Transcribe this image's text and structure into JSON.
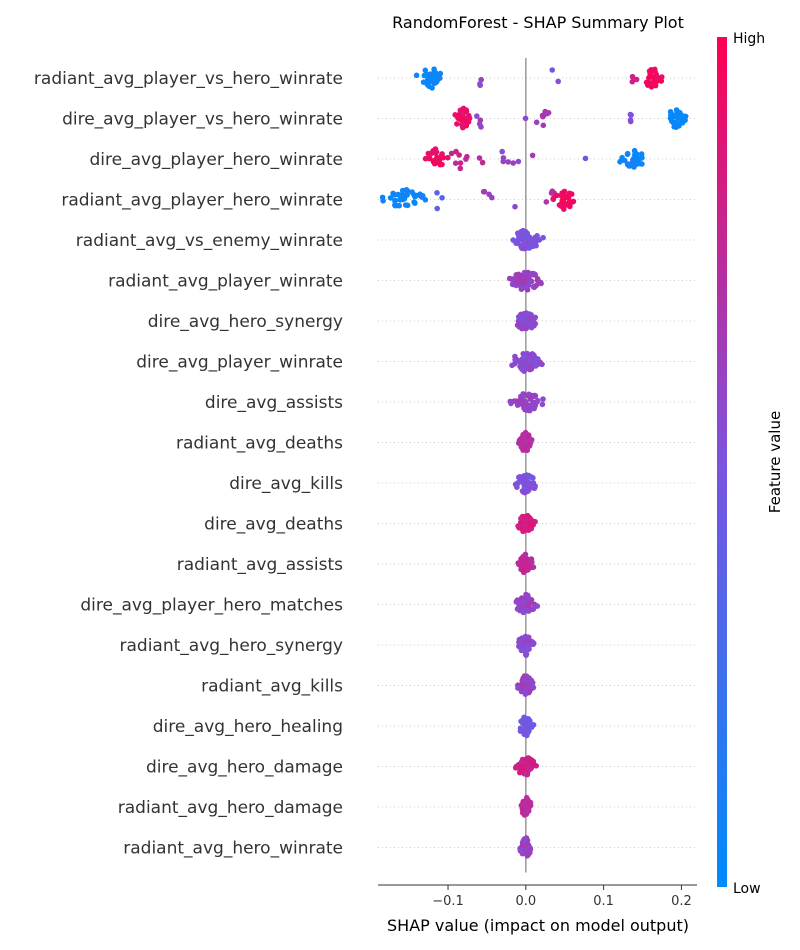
{
  "chart_data": {
    "type": "scatter",
    "title": "RandomForest - SHAP Summary Plot",
    "xlabel": "SHAP value (impact on model output)",
    "xlim": [
      -0.19,
      0.22
    ],
    "xticks": [
      -0.1,
      0.0,
      0.1,
      0.2
    ],
    "xtick_labels": [
      "−0.1",
      "0.0",
      "0.1",
      "0.2"
    ],
    "zero_line": 0.0,
    "colorbar": {
      "label": "Feature value",
      "high_label": "High",
      "low_label": "Low",
      "low_color": "#008bfb",
      "high_color": "#ff0052"
    },
    "features": [
      {
        "name": "radiant_avg_player_vs_hero_winrate",
        "clusters": [
          {
            "center": -0.122,
            "spread": 0.01,
            "count": 34,
            "value": 0.05
          },
          {
            "center": -0.057,
            "spread": 0.006,
            "count": 3,
            "value": 0.55
          },
          {
            "center": 0.038,
            "spread": 0.008,
            "count": 2,
            "value": 0.5
          },
          {
            "center": 0.138,
            "spread": 0.004,
            "count": 3,
            "value": 0.8
          },
          {
            "center": 0.163,
            "spread": 0.007,
            "count": 30,
            "value": 0.97
          }
        ]
      },
      {
        "name": "dire_avg_player_vs_hero_winrate",
        "clusters": [
          {
            "center": -0.08,
            "spread": 0.007,
            "count": 28,
            "value": 0.93
          },
          {
            "center": -0.058,
            "spread": 0.006,
            "count": 4,
            "value": 0.6
          },
          {
            "center": 0.0,
            "spread": 0.002,
            "count": 1,
            "value": 0.55
          },
          {
            "center": 0.022,
            "spread": 0.006,
            "count": 8,
            "value": 0.65
          },
          {
            "center": 0.138,
            "spread": 0.006,
            "count": 4,
            "value": 0.5
          },
          {
            "center": 0.192,
            "spread": 0.007,
            "count": 34,
            "value": 0.04
          }
        ]
      },
      {
        "name": "dire_avg_player_hero_winrate",
        "clusters": [
          {
            "center": -0.115,
            "spread": 0.008,
            "count": 26,
            "value": 0.95
          },
          {
            "center": -0.08,
            "spread": 0.015,
            "count": 10,
            "value": 0.75
          },
          {
            "center": -0.025,
            "spread": 0.02,
            "count": 7,
            "value": 0.6
          },
          {
            "center": 0.077,
            "spread": 0.002,
            "count": 1,
            "value": 0.55
          },
          {
            "center": 0.138,
            "spread": 0.01,
            "count": 30,
            "value": 0.05
          }
        ]
      },
      {
        "name": "radiant_avg_player_hero_winrate",
        "clusters": [
          {
            "center": -0.155,
            "spread": 0.014,
            "count": 36,
            "value": 0.05
          },
          {
            "center": -0.115,
            "spread": 0.005,
            "count": 3,
            "value": 0.35
          },
          {
            "center": -0.052,
            "spread": 0.008,
            "count": 5,
            "value": 0.65
          },
          {
            "center": -0.012,
            "spread": 0.003,
            "count": 1,
            "value": 0.6
          },
          {
            "center": 0.032,
            "spread": 0.005,
            "count": 6,
            "value": 0.7
          },
          {
            "center": 0.05,
            "spread": 0.007,
            "count": 28,
            "value": 0.95
          }
        ]
      },
      {
        "name": "radiant_avg_vs_enemy_winrate",
        "clusters": [
          {
            "center": 0.0,
            "spread": 0.011,
            "count": 60,
            "value": 0.5
          }
        ]
      },
      {
        "name": "radiant_avg_player_winrate",
        "clusters": [
          {
            "center": 0.0,
            "spread": 0.012,
            "count": 60,
            "value": 0.6
          }
        ]
      },
      {
        "name": "dire_avg_hero_synergy",
        "clusters": [
          {
            "center": 0.0,
            "spread": 0.008,
            "count": 55,
            "value": 0.55
          }
        ]
      },
      {
        "name": "dire_avg_player_winrate",
        "clusters": [
          {
            "center": 0.0,
            "spread": 0.012,
            "count": 60,
            "value": 0.55
          }
        ]
      },
      {
        "name": "dire_avg_assists",
        "clusters": [
          {
            "center": 0.0,
            "spread": 0.011,
            "count": 60,
            "value": 0.6
          }
        ]
      },
      {
        "name": "radiant_avg_deaths",
        "clusters": [
          {
            "center": 0.0,
            "spread": 0.006,
            "count": 50,
            "value": 0.7
          }
        ]
      },
      {
        "name": "dire_avg_kills",
        "clusters": [
          {
            "center": 0.0,
            "spread": 0.008,
            "count": 52,
            "value": 0.5
          }
        ]
      },
      {
        "name": "dire_avg_deaths",
        "clusters": [
          {
            "center": 0.0,
            "spread": 0.006,
            "count": 50,
            "value": 0.85
          }
        ]
      },
      {
        "name": "radiant_avg_assists",
        "clusters": [
          {
            "center": 0.0,
            "spread": 0.005,
            "count": 46,
            "value": 0.75
          }
        ]
      },
      {
        "name": "dire_avg_player_hero_matches",
        "clusters": [
          {
            "center": 0.0,
            "spread": 0.007,
            "count": 50,
            "value": 0.6
          }
        ]
      },
      {
        "name": "radiant_avg_hero_synergy",
        "clusters": [
          {
            "center": 0.0,
            "spread": 0.006,
            "count": 48,
            "value": 0.55
          }
        ]
      },
      {
        "name": "radiant_avg_kills",
        "clusters": [
          {
            "center": 0.0,
            "spread": 0.006,
            "count": 48,
            "value": 0.6
          }
        ]
      },
      {
        "name": "dire_avg_hero_healing",
        "clusters": [
          {
            "center": 0.0,
            "spread": 0.005,
            "count": 44,
            "value": 0.45
          }
        ]
      },
      {
        "name": "dire_avg_hero_damage",
        "clusters": [
          {
            "center": 0.0,
            "spread": 0.007,
            "count": 50,
            "value": 0.8
          }
        ]
      },
      {
        "name": "radiant_avg_hero_damage",
        "clusters": [
          {
            "center": 0.0,
            "spread": 0.004,
            "count": 42,
            "value": 0.75
          }
        ]
      },
      {
        "name": "radiant_avg_hero_winrate",
        "clusters": [
          {
            "center": 0.0,
            "spread": 0.004,
            "count": 42,
            "value": 0.6
          }
        ]
      }
    ]
  }
}
